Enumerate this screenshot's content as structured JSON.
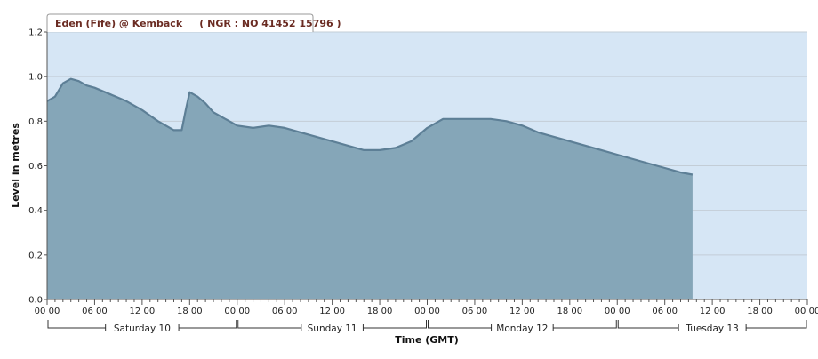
{
  "title_tab": "Eden (Fife) @ Kemback     ( NGR : NO 41452 15796 )",
  "colors": {
    "plot_background": "#d6e6f5",
    "area_fill": "#85a6b8",
    "line": "#5d7f96",
    "grid": "#c3cdd6",
    "axis": "#555555",
    "tab_border": "#9a9a9a",
    "tab_text": "#6a2b22"
  },
  "chart_data": {
    "type": "area",
    "ylabel": "Level in metres",
    "xlabel": "Time (GMT)",
    "ylim": [
      0,
      1.2
    ],
    "yticks": [
      "0.0",
      "0.2",
      "0.4",
      "0.6",
      "0.8",
      "1.0",
      "1.2"
    ],
    "xlim_hours": [
      0,
      96
    ],
    "xticks": [
      "00 00",
      "06 00",
      "12 00",
      "18 00",
      "00 00",
      "06 00",
      "12 00",
      "18 00",
      "00 00",
      "06 00",
      "12 00",
      "18 00",
      "00 00",
      "06 00",
      "12 00",
      "18 00",
      "00 00"
    ],
    "days": [
      "Saturday 10",
      "Sunday 11",
      "Monday 12",
      "Tuesday 13"
    ],
    "grid": "horizontal",
    "series": [
      {
        "x_hours": [
          0,
          1,
          2,
          3,
          4,
          5,
          6,
          8,
          10,
          12,
          14,
          16,
          17,
          17.5,
          18,
          19,
          20,
          21,
          22,
          24,
          26,
          28,
          30,
          32,
          34,
          36,
          38,
          40,
          42,
          44,
          46,
          48,
          50,
          52,
          54,
          56,
          58,
          60,
          62,
          64,
          66,
          68,
          70,
          72,
          74,
          76,
          78,
          80,
          81.5
        ],
        "values": [
          0.89,
          0.91,
          0.97,
          0.99,
          0.98,
          0.96,
          0.95,
          0.92,
          0.89,
          0.85,
          0.8,
          0.76,
          0.76,
          0.85,
          0.93,
          0.91,
          0.88,
          0.84,
          0.82,
          0.78,
          0.77,
          0.78,
          0.77,
          0.75,
          0.73,
          0.71,
          0.69,
          0.67,
          0.67,
          0.68,
          0.71,
          0.77,
          0.81,
          0.81,
          0.81,
          0.81,
          0.8,
          0.78,
          0.75,
          0.73,
          0.71,
          0.69,
          0.67,
          0.65,
          0.63,
          0.61,
          0.59,
          0.57,
          0.56
        ]
      }
    ]
  }
}
